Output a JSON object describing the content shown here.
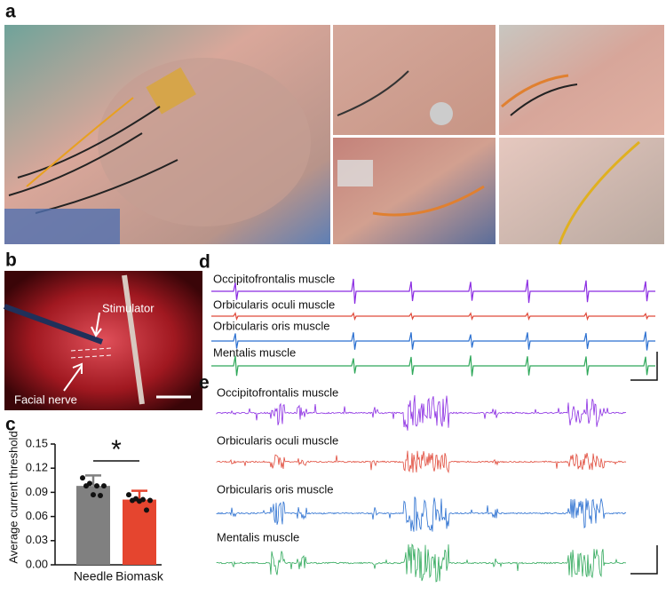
{
  "panel_labels": [
    "a",
    "b",
    "c",
    "d",
    "e"
  ],
  "photo_b": {
    "labels": [
      "Stimulator",
      "Facial nerve"
    ]
  },
  "traces_d": {
    "labels": [
      "Occipitofrontalis muscle",
      "Orbicularis oculi muscle",
      "Orbicularis oris muscle",
      "Mentalis muscle"
    ]
  },
  "traces_e": {
    "labels": [
      "Occipitofrontalis muscle",
      "Orbicularis oculi muscle",
      "Orbicularis oris muscle",
      "Mentalis muscle"
    ]
  },
  "chart_data": {
    "type": "bar",
    "ylabel": "Average current threshold",
    "categories": [
      "Needle",
      "Biomask"
    ],
    "values": [
      0.098,
      0.081
    ],
    "errors": [
      0.013,
      0.011
    ],
    "colors": [
      "#808080",
      "#e5452f"
    ],
    "points": [
      [
        0.108,
        0.101,
        0.098,
        0.098,
        0.098,
        0.087,
        0.086
      ],
      [
        0.087,
        0.082,
        0.081,
        0.08,
        0.08,
        0.079,
        0.068
      ]
    ],
    "significance": "*",
    "ylim": [
      0,
      0.15
    ],
    "yticks": [
      {
        "value": 0,
        "label": "0.00"
      },
      0.03,
      0.06,
      0.09,
      0.12,
      0.15
    ]
  }
}
